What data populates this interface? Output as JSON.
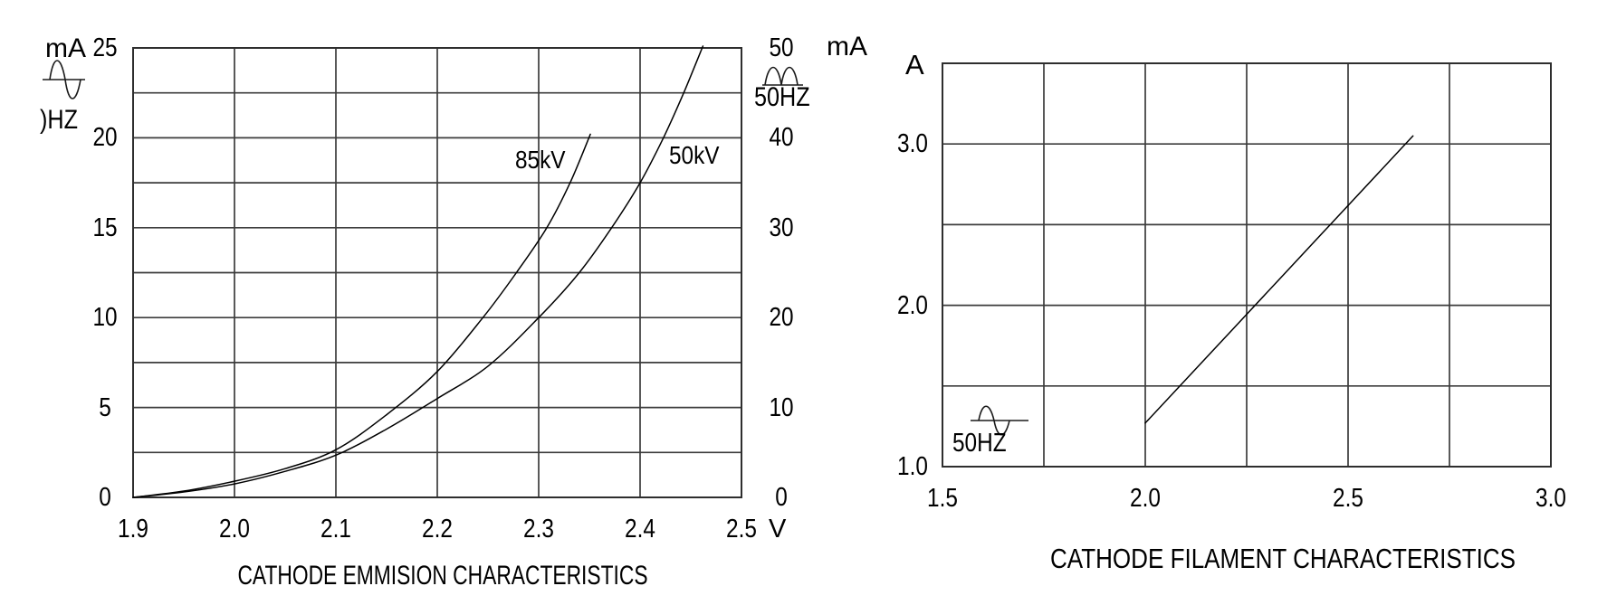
{
  "page": {
    "background": "#ffffff",
    "text_color": "#000000",
    "curve_color": "#000000",
    "grid_color": "#3c3c3c",
    "border_color": "#2e2e2e"
  },
  "chart_data": [
    {
      "id": "emission",
      "type": "line",
      "title": "CATHODE EMMISION CHARACTERISTICS",
      "grid": true,
      "x_axis": {
        "unit": "V",
        "min": 1.9,
        "max": 2.5,
        "grid_step": 0.1,
        "tick_labels": [
          "1.9",
          "2.0",
          "2.1",
          "2.2",
          "2.3",
          "2.4",
          "2.5"
        ],
        "tick_values": [
          1.9,
          2.0,
          2.1,
          2.2,
          2.3,
          2.4,
          2.5
        ]
      },
      "y_axis_left": {
        "unit": "mA",
        "waveform": "sine",
        "waveform_label": ")HZ",
        "min": 0,
        "max": 25,
        "grid_step": 2.5,
        "tick_labels": [
          "0",
          "5",
          "10",
          "15",
          "20",
          "25"
        ],
        "tick_values": [
          0,
          5,
          10,
          15,
          20,
          25
        ]
      },
      "y_axis_right": {
        "unit": "mA",
        "waveform": "full-wave-rectified",
        "waveform_label": "50HZ",
        "min": 0,
        "max": 50,
        "tick_labels": [
          "0",
          "10",
          "20",
          "30",
          "40",
          "50"
        ],
        "tick_values": [
          0,
          10,
          20,
          30,
          40,
          50
        ]
      },
      "series": [
        {
          "name": "85kV",
          "points": [
            [
              1.9,
              0
            ],
            [
              1.95,
              0.35
            ],
            [
              2.0,
              0.9
            ],
            [
              2.05,
              1.6
            ],
            [
              2.1,
              2.65
            ],
            [
              2.15,
              4.6
            ],
            [
              2.2,
              7.0
            ],
            [
              2.245,
              10.0
            ],
            [
              2.278,
              12.5
            ],
            [
              2.308,
              15.0
            ],
            [
              2.331,
              17.5
            ],
            [
              2.351,
              20.2
            ]
          ]
        },
        {
          "name": "50kV",
          "points": [
            [
              1.9,
              0
            ],
            [
              1.95,
              0.3
            ],
            [
              2.0,
              0.75
            ],
            [
              2.05,
              1.45
            ],
            [
              2.1,
              2.35
            ],
            [
              2.15,
              3.8
            ],
            [
              2.2,
              5.5
            ],
            [
              2.25,
              7.3
            ],
            [
              2.3,
              10.0
            ],
            [
              2.34,
              12.5
            ],
            [
              2.372,
              15.0
            ],
            [
              2.4,
              17.5
            ],
            [
              2.423,
              20.0
            ],
            [
              2.443,
              22.5
            ],
            [
              2.462,
              25.1
            ]
          ]
        }
      ]
    },
    {
      "id": "filament",
      "type": "line",
      "title": "CATHODE FILAMENT CHARACTERISTICS",
      "grid": true,
      "x_axis": {
        "unit": "",
        "min": 1.5,
        "max": 3.0,
        "grid_step": 0.25,
        "tick_labels": [
          "1.5",
          "2.0",
          "2.5",
          "3.0"
        ],
        "tick_values": [
          1.5,
          2.0,
          2.5,
          3.0
        ]
      },
      "y_axis_left": {
        "unit": "A",
        "waveform": "sine",
        "waveform_label": "50HZ",
        "min": 1.0,
        "max": 3.5,
        "grid_step": 0.5,
        "tick_labels": [
          "1.0",
          "2.0",
          "3.0"
        ],
        "tick_values": [
          1.0,
          2.0,
          3.0
        ]
      },
      "series": [
        {
          "name": "",
          "points": [
            [
              2.0,
              1.27
            ],
            [
              2.33,
              2.16
            ],
            [
              2.66,
              3.05
            ]
          ]
        }
      ]
    }
  ]
}
